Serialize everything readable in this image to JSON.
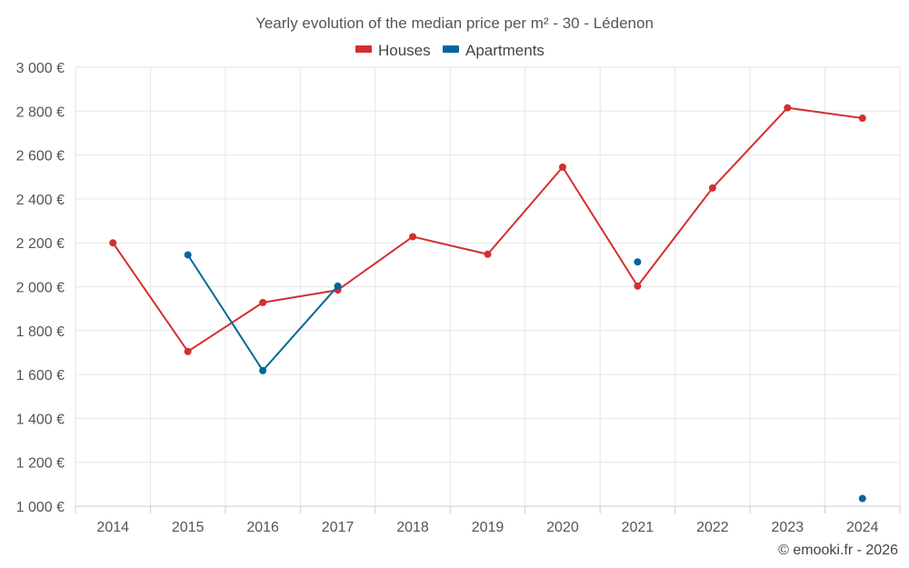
{
  "chart_data": {
    "type": "line",
    "title": "Yearly evolution of the median price per m² - 30 - Lédenon",
    "categories": [
      "2014",
      "2015",
      "2016",
      "2017",
      "2018",
      "2019",
      "2020",
      "2021",
      "2022",
      "2023",
      "2024"
    ],
    "ylim": [
      1000,
      3000
    ],
    "yticks": [
      1000,
      1200,
      1400,
      1600,
      1800,
      2000,
      2200,
      2400,
      2600,
      2800,
      3000
    ],
    "ytick_labels": [
      "1 000 €",
      "1 200 €",
      "1 400 €",
      "1 600 €",
      "1 800 €",
      "2 000 €",
      "2 200 €",
      "2 400 €",
      "2 600 €",
      "2 800 €",
      "3 000 €"
    ],
    "grid": true,
    "legend_position": "top-center",
    "series": [
      {
        "name": "Houses",
        "color": "#d32f2f",
        "values": [
          2200,
          1705,
          1928,
          1985,
          2228,
          2148,
          2545,
          2003,
          2450,
          2815,
          2768
        ]
      },
      {
        "name": "Apartments",
        "color": "#01679a",
        "values": [
          null,
          2145,
          1618,
          2003,
          null,
          null,
          null,
          2113,
          null,
          null,
          1035
        ]
      }
    ]
  },
  "credit": "© emooki.fr - 2026"
}
